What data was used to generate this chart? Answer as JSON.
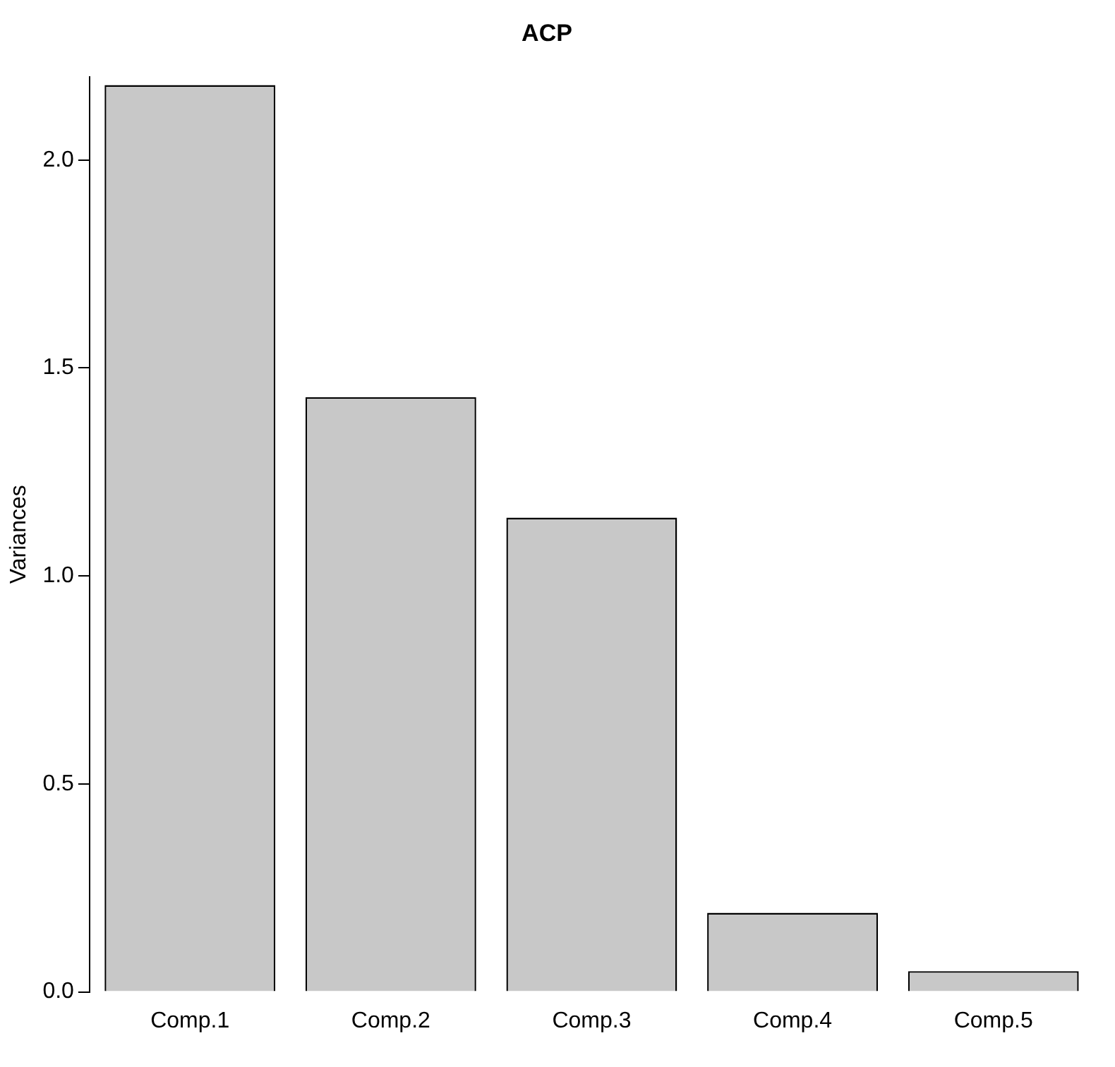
{
  "chart_data": {
    "type": "bar",
    "title": "ACP",
    "ylabel": "Variances",
    "categories": [
      "Comp.1",
      "Comp.2",
      "Comp.3",
      "Comp.4",
      "Comp.5"
    ],
    "values": [
      2.18,
      1.43,
      1.14,
      0.19,
      0.05
    ],
    "color": "#c8c8c8",
    "ylim": [
      0,
      2.2
    ],
    "yticks": [
      {
        "value": 0,
        "label": "0.0"
      },
      {
        "value": 0.5,
        "label": "0.5"
      },
      {
        "value": 1,
        "label": "1.0"
      },
      {
        "value": 1.5,
        "label": "1.5"
      },
      {
        "value": 2,
        "label": "2.0"
      }
    ],
    "grid": false,
    "legend": false
  }
}
